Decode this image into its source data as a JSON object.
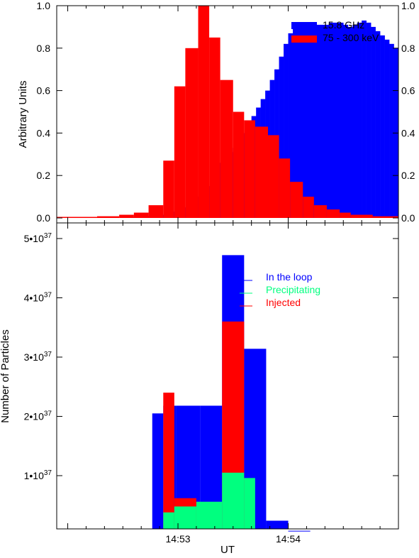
{
  "chart_data": [
    {
      "type": "bar",
      "ylabel": "Arbitrary Units",
      "ylim": [
        0,
        1.0
      ],
      "yticks": [
        "0.0",
        "0.2",
        "0.4",
        "0.6",
        "0.8",
        "1.0"
      ],
      "right_axis_ticks": [
        "0.0",
        "0.2",
        "0.4",
        "0.6",
        "0.8",
        "1.0"
      ],
      "legend_placement": "top-right",
      "x_unit": "seconds since 14:52 UT",
      "series": [
        {
          "name": "15.8 GHz",
          "color": "#0000ff",
          "bin_width_s": 2.5,
          "start_s": 0,
          "values": [
            0,
            0,
            0,
            0,
            0,
            0,
            0,
            0,
            0,
            0,
            0,
            0,
            0.002,
            0.003,
            0.004,
            0.005,
            0.006,
            0.008,
            0.01,
            0.012,
            0.015,
            0.02,
            0.025,
            0.03,
            0.04,
            0.05,
            0.06,
            0.08,
            0.1,
            0.12,
            0.15,
            0.18,
            0.22,
            0.26,
            0.29,
            0.31,
            0.33,
            0.36,
            0.4,
            0.44,
            0.48,
            0.52,
            0.56,
            0.6,
            0.65,
            0.7,
            0.76,
            0.82,
            0.87,
            0.9,
            0.91,
            0.92,
            0.92,
            0.92,
            0.91,
            0.91,
            0.91,
            0.92,
            0.92,
            0.92,
            0.91,
            0.9,
            0.91,
            0.92,
            0.93,
            0.92,
            0.9,
            0.88,
            0.86,
            0.84,
            0.82,
            0.8,
            0.78,
            0.76,
            0.74,
            0.72,
            0.69,
            0.66,
            0.63,
            0.61,
            0.6,
            0.59,
            0.58,
            0.57,
            0.56,
            0.55,
            0.54,
            0.53,
            0.52,
            0.51,
            0.5,
            0.49,
            0.48,
            0.47,
            0.46,
            0.45,
            0.44,
            0.43,
            0.42,
            0.41,
            0.4,
            0.39,
            0.38,
            0.37,
            0.36,
            0.35,
            0.34,
            0.33,
            0.32,
            0.31,
            0.3,
            0.29,
            0.28,
            0.27,
            0.26,
            0.25,
            0.24,
            0.23,
            0.22,
            0.21,
            0.2,
            0.19,
            0.18,
            0.17,
            0.17,
            0.16
          ]
        },
        {
          "name": "75 - 300 keV",
          "color": "#ff0000",
          "bins": [
            {
              "x0": -6,
              "x1": 16,
              "value": 0.005
            },
            {
              "x0": 16,
              "x1": 28,
              "value": 0.008
            },
            {
              "x0": 28,
              "x1": 36,
              "value": 0.015
            },
            {
              "x0": 36,
              "x1": 44,
              "value": 0.025
            },
            {
              "x0": 44,
              "x1": 52,
              "value": 0.06
            },
            {
              "x0": 52,
              "x1": 58,
              "value": 0.27
            },
            {
              "x0": 58,
              "x1": 64,
              "value": 0.62
            },
            {
              "x0": 64,
              "x1": 71,
              "value": 0.8
            },
            {
              "x0": 71,
              "x1": 77,
              "value": 1.0
            },
            {
              "x0": 77,
              "x1": 83,
              "value": 0.85
            },
            {
              "x0": 83,
              "x1": 90,
              "value": 0.65
            },
            {
              "x0": 90,
              "x1": 96,
              "value": 0.5
            },
            {
              "x0": 96,
              "x1": 102,
              "value": 0.46
            },
            {
              "x0": 102,
              "x1": 109,
              "value": 0.43
            },
            {
              "x0": 109,
              "x1": 115,
              "value": 0.39
            },
            {
              "x0": 115,
              "x1": 121,
              "value": 0.28
            },
            {
              "x0": 121,
              "x1": 128,
              "value": 0.17
            },
            {
              "x0": 128,
              "x1": 134,
              "value": 0.1
            },
            {
              "x0": 134,
              "x1": 141,
              "value": 0.06
            },
            {
              "x0": 141,
              "x1": 148,
              "value": 0.04
            },
            {
              "x0": 148,
              "x1": 154,
              "value": 0.025
            },
            {
              "x0": 154,
              "x1": 166,
              "value": 0.015
            },
            {
              "x0": 166,
              "x1": 180,
              "value": 0.008
            }
          ]
        }
      ]
    },
    {
      "type": "bar",
      "xlabel": "UT",
      "ylabel": "Number of Particles",
      "ylim": [
        0,
        5e+37
      ],
      "yticks": [
        {
          "mantissa": "1",
          "exponent": "37",
          "value": 1e+37
        },
        {
          "mantissa": "2",
          "exponent": "37",
          "value": 2e+37
        },
        {
          "mantissa": "3",
          "exponent": "37",
          "value": 3e+37
        },
        {
          "mantissa": "4",
          "exponent": "37",
          "value": 4e+37
        },
        {
          "mantissa": "5",
          "exponent": "37",
          "value": 5e+37
        }
      ],
      "xticks": [
        {
          "label": "14:53",
          "value": 60
        },
        {
          "label": "14:54",
          "value": 120
        }
      ],
      "xlim_s": [
        -6,
        180
      ],
      "x_unit": "seconds since 14:52 UT",
      "legend_placement": "top-right",
      "series": [
        {
          "name": "In the loop",
          "color": "#0000ff",
          "bins": [
            {
              "x0": 46,
              "x1": 52,
              "value": 2.05e+37
            },
            {
              "x0": 52,
              "x1": 59,
              "value": 2.18e+37
            },
            {
              "x0": 59,
              "x1": 72,
              "value": 2.18e+37
            },
            {
              "x0": 72,
              "x1": 84,
              "value": 2.18e+37
            },
            {
              "x0": 84,
              "x1": 96,
              "value": 4.72e+37
            },
            {
              "x0": 96,
              "x1": 108,
              "value": 3.14e+37
            },
            {
              "x0": 108,
              "x1": 120,
              "value": 2.4e+36
            },
            {
              "x0": 120,
              "x1": 132,
              "value": 7e+35
            }
          ]
        },
        {
          "name": "Precipitating",
          "color": "#00ff7f",
          "bins": [
            {
              "x0": 52,
              "x1": 58,
              "value": 3.8e+36
            },
            {
              "x0": 58,
              "x1": 70,
              "value": 4.8e+36
            },
            {
              "x0": 70,
              "x1": 84,
              "value": 5.6e+36
            },
            {
              "x0": 84,
              "x1": 96,
              "value": 1.05e+37
            },
            {
              "x0": 96,
              "x1": 102,
              "value": 9.6e+36
            }
          ]
        },
        {
          "name": "Injected",
          "color": "#ff0000",
          "bins": [
            {
              "x0": 52,
              "x1": 58,
              "value": 2.4e+37
            },
            {
              "x0": 58,
              "x1": 70,
              "value": 6.2e+36
            },
            {
              "x0": 84,
              "x1": 96,
              "value": 3.6e+37
            }
          ]
        }
      ]
    }
  ]
}
